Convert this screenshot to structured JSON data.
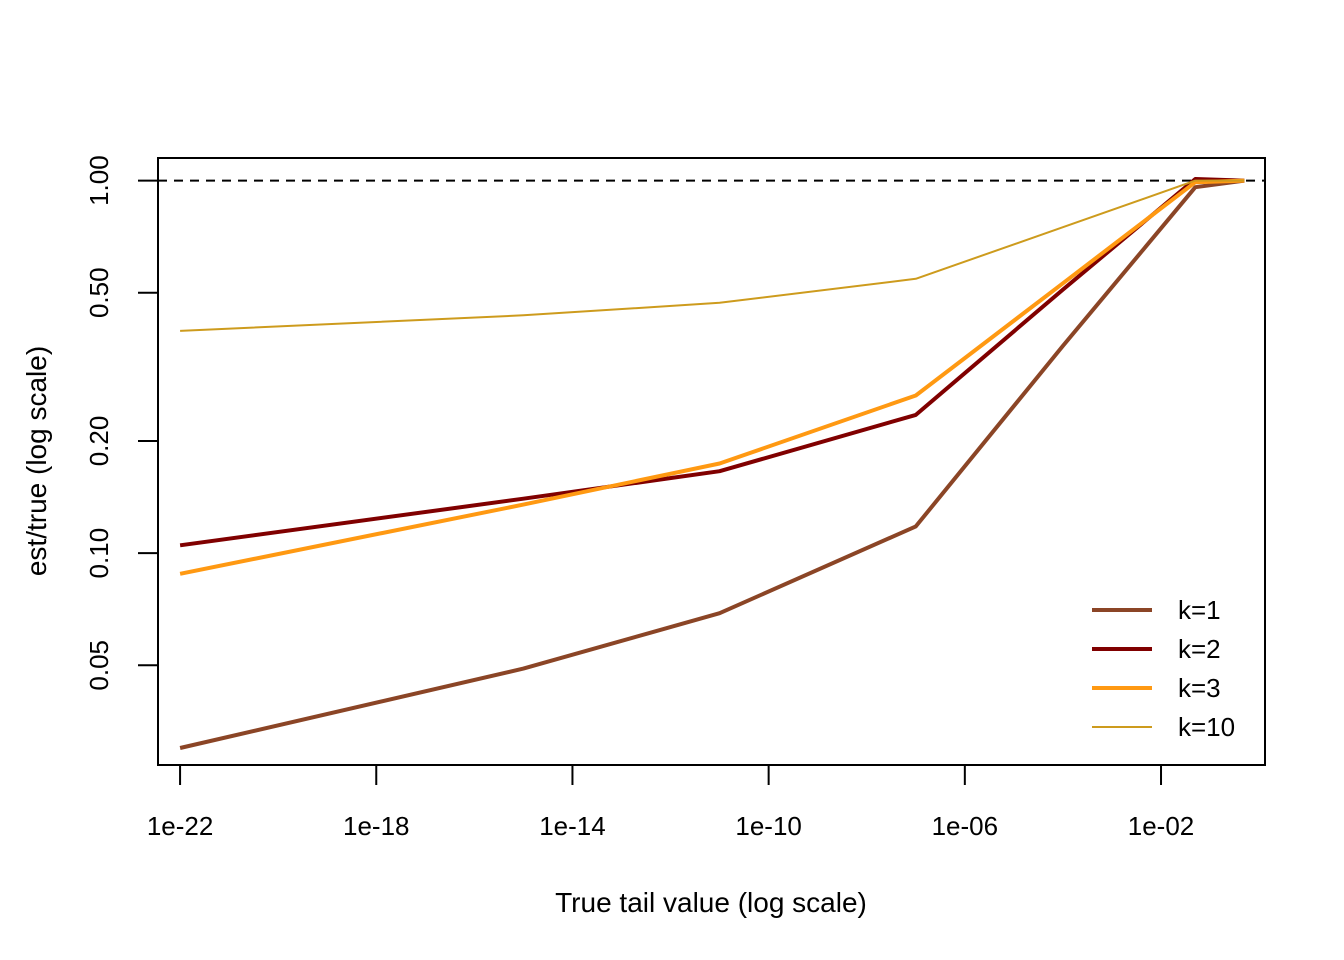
{
  "chart_data": {
    "type": "line",
    "title": "",
    "xlabel": "True tail value (log scale)",
    "ylabel": "est/true (log scale)",
    "x_scale": "log10",
    "y_scale": "log10",
    "xlim": [
      1e-22,
      1
    ],
    "ylim": [
      0.027,
      1.15
    ],
    "x_ticks": [
      1e-22,
      1e-18,
      1e-14,
      1e-10,
      1e-06,
      0.01
    ],
    "x_tick_labels": [
      "1e-22",
      "1e-18",
      "1e-14",
      "1e-10",
      "1e-06",
      "1e-02"
    ],
    "y_ticks": [
      0.05,
      0.1,
      0.2,
      0.5,
      1.0
    ],
    "y_tick_labels": [
      "0.05",
      "0.10",
      "0.20",
      "0.50",
      "1.00"
    ],
    "reference_line": {
      "y": 1.0,
      "style": "dashed",
      "color": "#000000"
    },
    "x": [
      1e-22,
      1e-15,
      1e-11,
      1e-07,
      0.0001,
      0.05,
      0.5
    ],
    "series": [
      {
        "name": "k=1",
        "color": "#8B4526",
        "width": "thick",
        "values": [
          0.03,
          0.049,
          0.069,
          0.118,
          0.36,
          0.96,
          1.0
        ]
      },
      {
        "name": "k=2",
        "color": "#800000",
        "width": "thick",
        "values": [
          0.105,
          0.14,
          0.166,
          0.235,
          0.51,
          1.01,
          1.0
        ]
      },
      {
        "name": "k=3",
        "color": "#FF9912",
        "width": "thick",
        "values": [
          0.088,
          0.135,
          0.174,
          0.265,
          0.53,
          0.99,
          1.0
        ]
      },
      {
        "name": "k=10",
        "color": "#CD9B1D",
        "width": "thin",
        "values": [
          0.395,
          0.435,
          0.47,
          0.545,
          0.75,
          1.0,
          1.0
        ]
      }
    ],
    "legend": {
      "placement": "bottom-right",
      "entries": [
        "k=1",
        "k=2",
        "k=3",
        "k=10"
      ]
    },
    "grid": false
  }
}
